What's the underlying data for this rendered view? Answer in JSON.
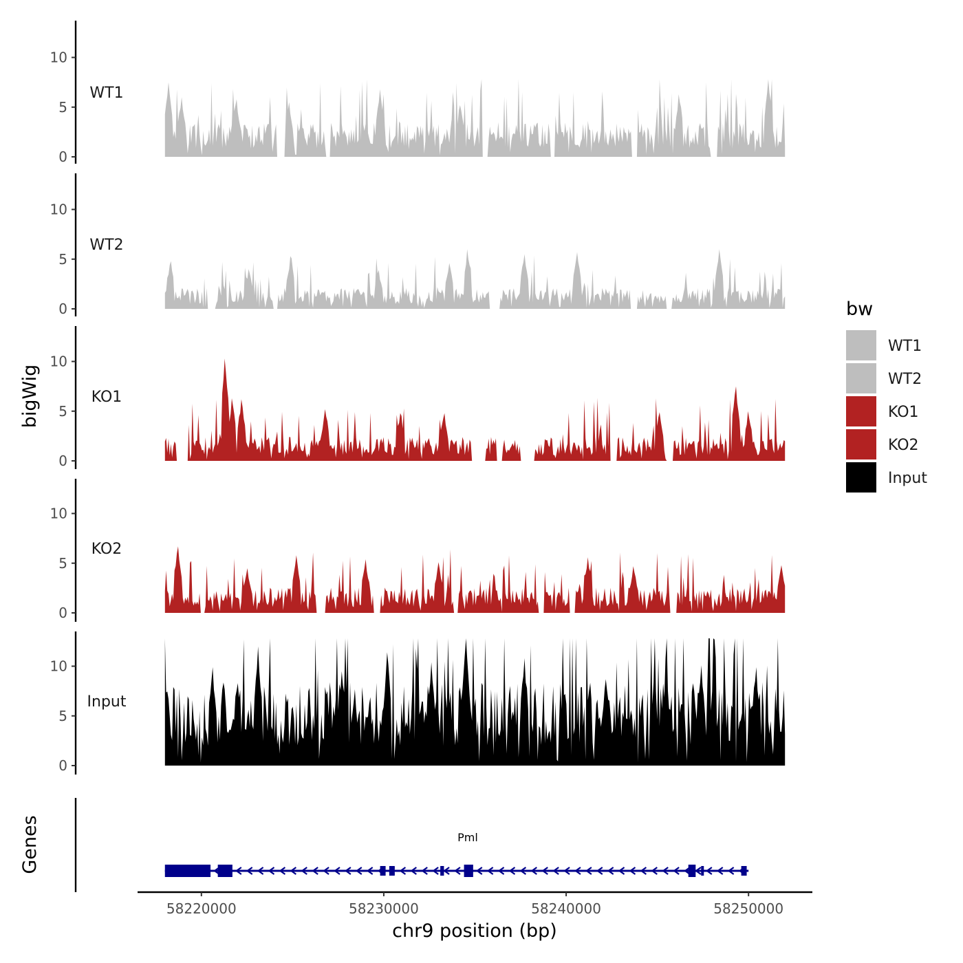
{
  "chart_data": {
    "type": "area",
    "title": "",
    "xlabel": "chr9 position (bp)",
    "ylabel": "bigWig",
    "genes_label": "Genes",
    "xlim": [
      58216500,
      58253500
    ],
    "region": [
      58218000,
      58252000
    ],
    "ylim": [
      0,
      13.5
    ],
    "x_ticks": [
      58220000,
      58230000,
      58240000,
      58250000
    ],
    "x_tick_labels": [
      "58220000",
      "58230000",
      "58240000",
      "58250000"
    ],
    "y_ticks": [
      0,
      5,
      10
    ],
    "y_tick_labels": [
      "0",
      "5",
      "10"
    ],
    "legend": {
      "title": "bw",
      "entries": [
        {
          "label": "WT1",
          "color": "#bebebe"
        },
        {
          "label": "WT2",
          "color": "#bebebe"
        },
        {
          "label": "KO1",
          "color": "#b22222"
        },
        {
          "label": "KO2",
          "color": "#b22222"
        },
        {
          "label": "Input",
          "color": "#000000"
        }
      ]
    },
    "series": [
      {
        "name": "WT1",
        "color": "#bebebe",
        "mean": 2.3,
        "max": 7.8,
        "peaks": [
          [
            58218200,
            7.5
          ],
          [
            58218900,
            6.0
          ],
          [
            58221900,
            5.8
          ],
          [
            58224800,
            5.5
          ],
          [
            58229800,
            6.8
          ],
          [
            58234200,
            5.2
          ],
          [
            58246200,
            6.3
          ],
          [
            58251100,
            7.8
          ]
        ],
        "gaps": [
          [
            58224100,
            58224600
          ],
          [
            58226800,
            58227100
          ],
          [
            58235400,
            58235700
          ],
          [
            58239100,
            58239400
          ],
          [
            58243600,
            58243900
          ],
          [
            58247900,
            58248300
          ]
        ]
      },
      {
        "name": "WT2",
        "color": "#bebebe",
        "mean": 1.4,
        "max": 6.0,
        "peaks": [
          [
            58218300,
            4.8
          ],
          [
            58222600,
            4.0
          ],
          [
            58224900,
            5.3
          ],
          [
            58229700,
            3.9
          ],
          [
            58233600,
            4.6
          ],
          [
            58234600,
            6.0
          ],
          [
            58237700,
            5.5
          ],
          [
            58240600,
            5.7
          ],
          [
            58248400,
            6.0
          ]
        ],
        "gaps": [
          [
            58220300,
            58220800
          ],
          [
            58223900,
            58224200
          ],
          [
            58235800,
            58236400
          ],
          [
            58243500,
            58243900
          ],
          [
            58245500,
            58245800
          ]
        ]
      },
      {
        "name": "KO1",
        "color": "#b22222",
        "mean": 1.6,
        "max": 10.3,
        "peaks": [
          [
            58221300,
            10.3
          ],
          [
            58221700,
            6.3
          ],
          [
            58222200,
            6.2
          ],
          [
            58226800,
            5.2
          ],
          [
            58230900,
            4.8
          ],
          [
            58233300,
            4.8
          ],
          [
            58245100,
            4.9
          ],
          [
            58249300,
            7.5
          ],
          [
            58250000,
            5.0
          ]
        ],
        "gaps": [
          [
            58218600,
            58219300
          ],
          [
            58234800,
            58235600
          ],
          [
            58236200,
            58236500
          ],
          [
            58237500,
            58238300
          ],
          [
            58242400,
            58242800
          ],
          [
            58245500,
            58245900
          ]
        ]
      },
      {
        "name": "KO2",
        "color": "#b22222",
        "mean": 1.7,
        "max": 6.7,
        "peaks": [
          [
            58218700,
            6.7
          ],
          [
            58222500,
            4.5
          ],
          [
            58225200,
            5.8
          ],
          [
            58229000,
            5.4
          ],
          [
            58233000,
            5.1
          ],
          [
            58241200,
            5.6
          ],
          [
            58243700,
            4.7
          ],
          [
            58251800,
            4.8
          ]
        ],
        "gaps": [
          [
            58219900,
            58220200
          ],
          [
            58226300,
            58226800
          ],
          [
            58229400,
            58229800
          ],
          [
            58233800,
            58234100
          ],
          [
            58238500,
            58238800
          ],
          [
            58240200,
            58240500
          ],
          [
            58245700,
            58246100
          ]
        ]
      },
      {
        "name": "Input",
        "color": "#000000",
        "mean": 5.6,
        "max": 12.8,
        "peaks": [
          [
            58220600,
            9.9
          ],
          [
            58223100,
            12.0
          ],
          [
            58227700,
            9.5
          ],
          [
            58230200,
            11.4
          ],
          [
            58232600,
            10.4
          ],
          [
            58234500,
            12.8
          ],
          [
            58237700,
            10.8
          ],
          [
            58242200,
            8.7
          ],
          [
            58247400,
            10.1
          ],
          [
            58250400,
            9.9
          ]
        ],
        "gaps": []
      }
    ],
    "gene": {
      "name": "Pml",
      "strand": "-",
      "start": 58218000,
      "end": 58250000,
      "color": "#00008b",
      "exons": [
        [
          58218000,
          58220500
        ],
        [
          58220900,
          58221700
        ],
        [
          58229800,
          58230100
        ],
        [
          58230300,
          58230600
        ],
        [
          58233100,
          58233300
        ],
        [
          58234400,
          58234900
        ],
        [
          58246700,
          58247100
        ],
        [
          58247400,
          58247500
        ],
        [
          58249600,
          58249900
        ]
      ]
    }
  }
}
